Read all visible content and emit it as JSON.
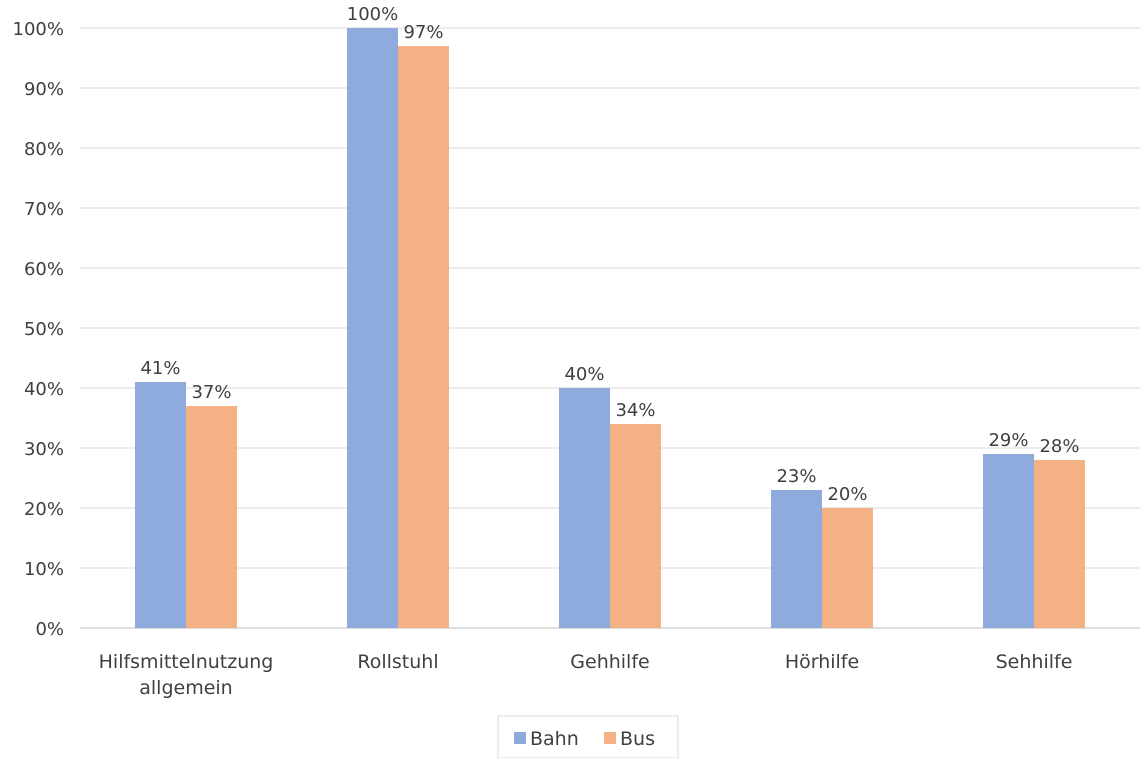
{
  "chart_data": {
    "type": "bar",
    "categories": [
      [
        "Hilfsmittelnutzung",
        "allgemein"
      ],
      [
        "Rollstuhl"
      ],
      [
        "Gehhilfe"
      ],
      [
        "Hörhilfe"
      ],
      [
        "Sehhilfe"
      ]
    ],
    "series": [
      {
        "name": "Bahn",
        "color": "#8faadc",
        "values": [
          41,
          100,
          40,
          23,
          29
        ],
        "labels": [
          "41%",
          "100%",
          "40%",
          "23%",
          "29%"
        ]
      },
      {
        "name": "Bus",
        "color": "#f4b183",
        "values": [
          37,
          97,
          34,
          20,
          28
        ],
        "labels": [
          "37%",
          "97%",
          "34%",
          "20%",
          "28%"
        ]
      }
    ],
    "yticks": [
      "0%",
      "10%",
      "20%",
      "30%",
      "40%",
      "50%",
      "60%",
      "70%",
      "80%",
      "90%",
      "100%"
    ],
    "ylim": [
      0,
      100
    ],
    "grid": true,
    "legend": "bottom-center"
  }
}
